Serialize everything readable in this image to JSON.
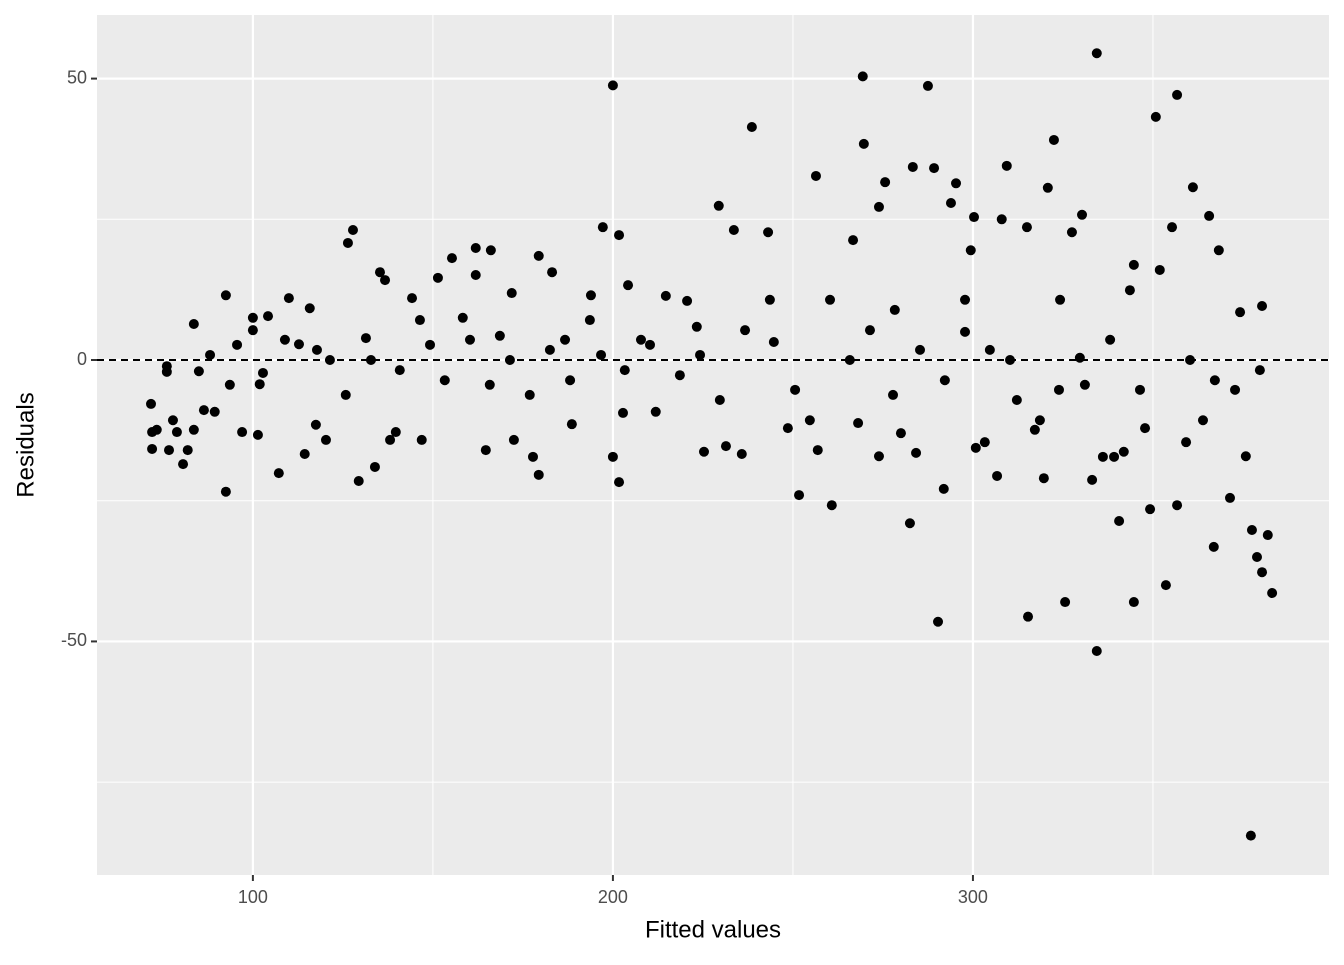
{
  "chart_data": {
    "type": "scatter",
    "xlabel": "Fitted values",
    "ylabel": "Residuals",
    "xlim": [
      56.7,
      398.9
    ],
    "ylim": [
      -91.5,
      61.3
    ],
    "xticks": [
      100,
      200,
      300
    ],
    "yticks": [
      -50,
      0,
      50
    ],
    "grid": true,
    "minor_grid": true,
    "hline": 0,
    "color": "#000000",
    "x": [
      71.7,
      72,
      72,
      73.3,
      76.1,
      76.1,
      76.7,
      77.8,
      78.9,
      80.6,
      81.9,
      83.6,
      83.6,
      85,
      86.4,
      88.1,
      89.4,
      92.5,
      92.5,
      93.6,
      95.6,
      97,
      100,
      100,
      101.4,
      102.8,
      104.2,
      107.2,
      110,
      112.8,
      114.4,
      115.8,
      117.5,
      120.3,
      121.4,
      126.4,
      127.8,
      129.4,
      131.4,
      133.9,
      135.3,
      136.7,
      138.1,
      139.7,
      144.2,
      146.9,
      149.2,
      151.4,
      155.3,
      158.3,
      161.9,
      161.9,
      164.7,
      166.1,
      168.6,
      171.9,
      172.5,
      177.8,
      179.4,
      179.4,
      183.1,
      186.7,
      188.6,
      193.9,
      196.7,
      197.2,
      200,
      200,
      201.7,
      201.7,
      202.8,
      204.2,
      207.8,
      211.9,
      214.7,
      220.6,
      223.3,
      225.3,
      229.4,
      231.4,
      233.6,
      235.8,
      238.6,
      243.1,
      244.7,
      248.6,
      251.7,
      256.4,
      256.9,
      260.8,
      266.7,
      268.1,
      269.4,
      269.7,
      273.9,
      273.9,
      275.6,
      277.8,
      280,
      282.5,
      284.2,
      283.3,
      287.5,
      289.2,
      290.3,
      291.9,
      293.9,
      295.3,
      297.8,
      299.4,
      300.3,
      300.8,
      303.3,
      306.7,
      308,
      309.4,
      312.2,
      315,
      315.3,
      317.2,
      319.7,
      320.8,
      322.5,
      323.9,
      325.6,
      327.5,
      329.7,
      330.3,
      333.1,
      334.4,
      334.4,
      336.1,
      339.2,
      340.6,
      341.9,
      343.6,
      344.7,
      344.7,
      347.8,
      349.2,
      350.8,
      353.6,
      355.3,
      356.7,
      356.7,
      359.2,
      361.1,
      363.9,
      365.6,
      366.9,
      368.3,
      371.4,
      374.2,
      375.8,
      377.2,
      377.5,
      378.9,
      380.3,
      380.3,
      381.9,
      383.1,
      101.9,
      108.9,
      117.8,
      125.8,
      132.8,
      140.8,
      146.4,
      153.3,
      160.3,
      165.8,
      171.4,
      176.9,
      182.5,
      188.1,
      193.6,
      203.3,
      210.3,
      218.6,
      224.2,
      229.7,
      236.7,
      243.6,
      250.6,
      254.7,
      260.3,
      265.8,
      271.4,
      278.3,
      285.3,
      292.2,
      297.8,
      304.7,
      310.3,
      318.6,
      324.2,
      331.1,
      338.1,
      346.4,
      351.9,
      360.3,
      367.2,
      372.8,
      379.7
    ],
    "values": [
      -7.8,
      -12.8,
      -15.8,
      -12.4,
      -1.1,
      -2.1,
      -16,
      -10.7,
      -12.8,
      -18.5,
      -16,
      6.4,
      -12.4,
      -2,
      -8.9,
      0.9,
      -9.2,
      11.5,
      -23.4,
      -4.4,
      2.7,
      -12.8,
      5.3,
      7.5,
      -13.3,
      -2.3,
      7.8,
      -20.1,
      11,
      2.8,
      -16.7,
      9.2,
      -11.5,
      -14.2,
      0,
      20.8,
      23.1,
      -21.5,
      3.9,
      -19,
      15.6,
      14.2,
      -14.2,
      -12.8,
      11,
      -14.2,
      2.7,
      14.6,
      18.1,
      7.5,
      19.9,
      15.1,
      -16,
      19.5,
      4.3,
      11.9,
      -14.2,
      -17.2,
      18.5,
      -20.4,
      15.6,
      3.6,
      -11.4,
      11.5,
      0.9,
      23.6,
      48.8,
      -17.2,
      22.2,
      -21.7,
      -9.4,
      13.3,
      3.6,
      -9.2,
      11.4,
      10.5,
      5.9,
      -16.3,
      27.4,
      -15.3,
      23.1,
      -16.7,
      41.4,
      22.7,
      3.2,
      -12.1,
      -24,
      32.7,
      -16,
      -25.8,
      21.3,
      -11.2,
      50.4,
      38.4,
      27.2,
      -17.1,
      31.6,
      -6.2,
      -13,
      -29,
      -16.5,
      34.3,
      48.7,
      34.1,
      -46.5,
      -22.9,
      27.9,
      31.4,
      5,
      19.5,
      25.4,
      -15.6,
      -14.6,
      -20.6,
      25,
      34.5,
      -7.1,
      23.6,
      -45.6,
      -12.4,
      -21,
      30.6,
      39.1,
      -5.3,
      -43,
      22.7,
      0.4,
      25.8,
      -21.3,
      54.5,
      -51.7,
      -17.2,
      -17.2,
      -28.6,
      -16.3,
      12.4,
      -43,
      16.9,
      -12.1,
      -26.5,
      43.2,
      -40,
      23.6,
      47.1,
      -25.8,
      -14.6,
      30.7,
      -10.7,
      25.6,
      -33.2,
      19.5,
      -24.5,
      8.5,
      -17.1,
      -84.5,
      -30.2,
      -35,
      -37.7,
      9.6,
      -31.1,
      -41.4,
      -4.3,
      3.6,
      1.8,
      -6.2,
      0,
      -1.8,
      7.1,
      -3.6,
      3.6,
      -4.4,
      0,
      -6.2,
      1.8,
      -3.6,
      7.1,
      -1.8,
      2.7,
      -2.7,
      0.9,
      -7.1,
      5.3,
      10.7,
      -5.3,
      -10.7,
      10.7,
      0,
      5.3,
      8.9,
      1.8,
      -3.6,
      10.7,
      1.8,
      0,
      -10.7,
      10.7,
      -4.4,
      3.6,
      -5.3,
      16,
      0,
      -3.6,
      -5.3,
      -1.8
    ]
  }
}
